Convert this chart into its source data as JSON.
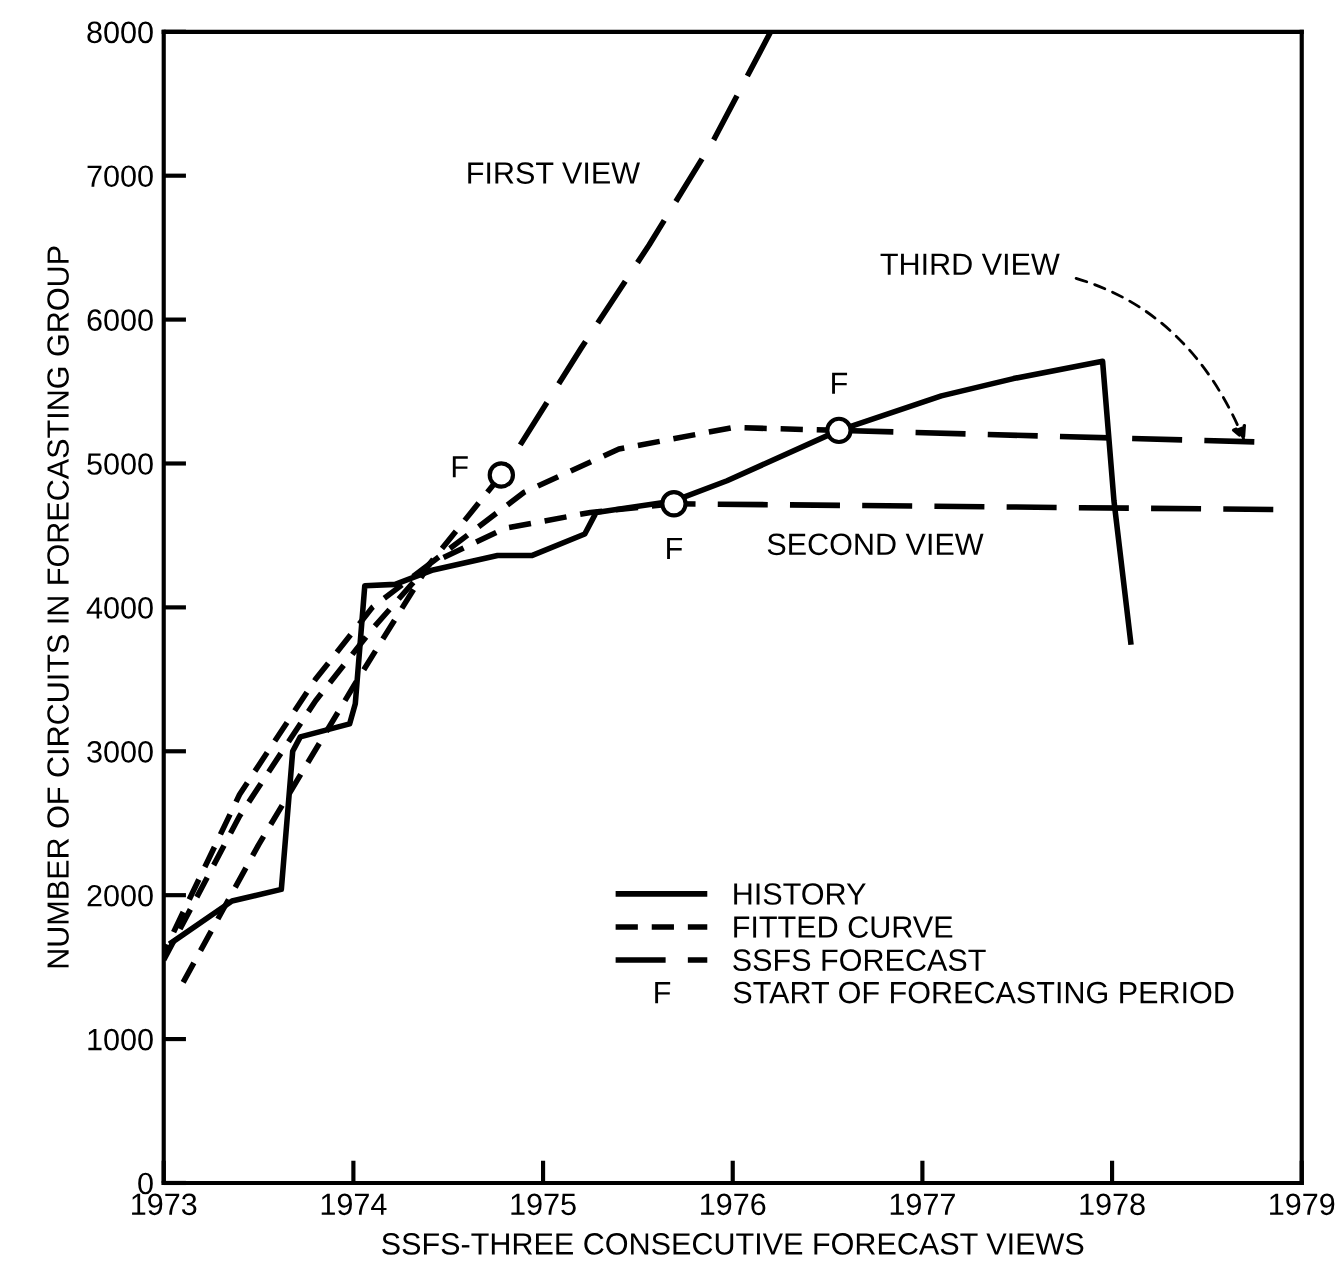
{
  "chart_data": {
    "type": "line",
    "xlabel": "SSFS-THREE CONSECUTIVE FORECAST VIEWS",
    "ylabel": "NUMBER OF CIRCUITS IN FORECASTING GROUP",
    "xlim": [
      1973,
      1979
    ],
    "xticks": [
      1973,
      1974,
      1975,
      1976,
      1977,
      1978,
      1979
    ],
    "ylim": [
      0,
      8000
    ],
    "yticks": [
      0,
      1000,
      2000,
      3000,
      4000,
      5000,
      6000,
      7000,
      8000
    ],
    "grid": false,
    "legend": "bottom",
    "series": [
      {
        "name": "HISTORY",
        "color": "#000000",
        "line_style": "solid",
        "x": [
          1973.03,
          1973.36,
          1973.62,
          1973.68,
          1973.72,
          1973.98,
          1974.01,
          1974.06,
          1974.22,
          1974.42,
          1974.76,
          1974.94,
          1975.22,
          1975.28,
          1975.69,
          1975.97,
          1976.56,
          1977.1,
          1977.48,
          1977.95,
          1978.01,
          1978.1
        ],
        "values": [
          1660,
          1960,
          2040,
          3000,
          3100,
          3190,
          3330,
          4150,
          4160,
          4260,
          4360,
          4360,
          4510,
          4660,
          4740,
          4880,
          5230,
          5470,
          5590,
          5710,
          4740,
          3740
        ]
      },
      {
        "name": "FITTED CURVE",
        "color": "#000000",
        "line_style": "dotted",
        "x": [
          1973.08,
          1973.5,
          1974.0,
          1974.4,
          1974.78
        ],
        "values": [
          1340,
          2350,
          3450,
          4300,
          4920
        ]
      },
      {
        "color": "#000000",
        "line_style": "dotted",
        "x": [
          1973.0,
          1973.4,
          1973.8,
          1974.1,
          1974.4,
          1974.8,
          1975.25,
          1975.69
        ],
        "values": [
          1600,
          2700,
          3500,
          4000,
          4300,
          4550,
          4660,
          4720
        ]
      },
      {
        "color": "#000000",
        "line_style": "dotted",
        "x": [
          1973.0,
          1973.4,
          1973.8,
          1974.1,
          1974.4,
          1974.9,
          1975.4,
          1976.0,
          1976.56
        ],
        "values": [
          1550,
          2550,
          3350,
          3850,
          4300,
          4800,
          5100,
          5250,
          5230
        ]
      },
      {
        "name": "SSFS FORECAST",
        "color": "#000000",
        "line_style": "dashed",
        "x": [
          1974.78,
          1975.2,
          1975.56,
          1975.9,
          1976.2
        ],
        "values": [
          4920,
          5800,
          6520,
          7250,
          8000
        ]
      },
      {
        "color": "#000000",
        "line_style": "dashed",
        "x": [
          1975.69,
          1978.85
        ],
        "values": [
          4720,
          4680
        ]
      },
      {
        "color": "#000000",
        "line_style": "dashed",
        "x": [
          1976.56,
          1978.75
        ],
        "values": [
          5230,
          5150
        ]
      },
      {
        "type": "scatter",
        "marker": "circle",
        "color": "#000000",
        "x": [
          1974.78,
          1975.69,
          1976.56
        ],
        "values": [
          4920,
          4720,
          5230
        ]
      }
    ],
    "annotations": [
      "FIRST VIEW",
      "SECOND VIEW",
      {
        "text": "THIRD VIEW",
        "x": 1978.7,
        "y": 5150
      },
      {
        "text": "F",
        "x": 1974.78,
        "y": 4920
      },
      {
        "text": "F",
        "x": 1975.69,
        "y": 4720
      },
      {
        "text": "F",
        "x": 1976.56,
        "y": 5230
      },
      "F",
      "START OF FORECASTING PERIOD"
    ]
  }
}
